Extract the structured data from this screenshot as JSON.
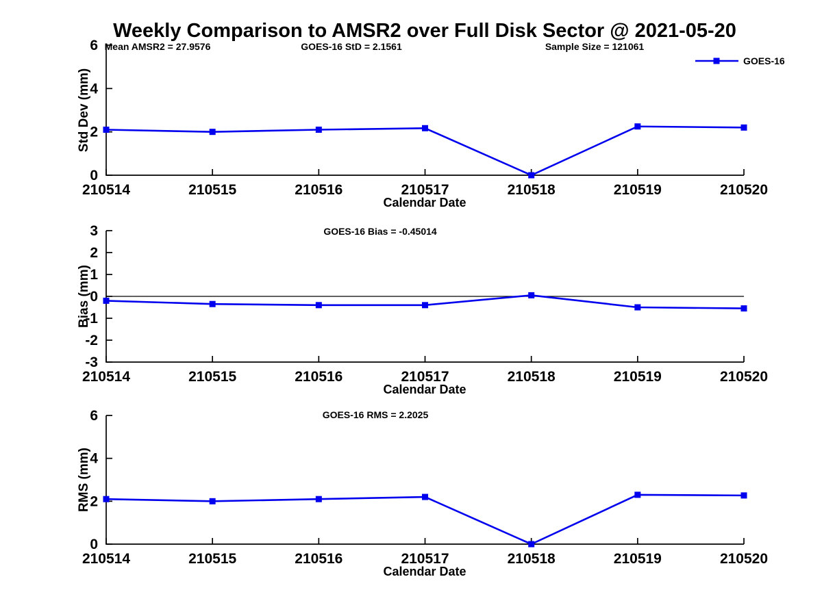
{
  "title": "Weekly Comparison to AMSR2 over Full Disk Sector @ 2021-05-20",
  "colors": {
    "series_line": "#0000ee",
    "axis": "#000000",
    "zero_line": "#000000",
    "background": "#ffffff"
  },
  "legend": {
    "label": "GOES-16"
  },
  "annotations": {
    "mean_amsr2": "Mean AMSR2 = 27.9576",
    "goes_std": "GOES-16 StD = 2.1561",
    "sample_size": "Sample Size = 121061",
    "goes_bias": "GOES-16 Bias  = -0.45014",
    "goes_rms": "GOES-16 RMS = 2.2025"
  },
  "chart_data": [
    {
      "type": "line",
      "name": "std-dev",
      "title": "",
      "categories": [
        "210514",
        "210515",
        "210516",
        "210517",
        "210518",
        "210519",
        "210520"
      ],
      "series": [
        {
          "name": "GOES-16",
          "values": [
            2.1,
            2.0,
            2.1,
            2.17,
            0.0,
            2.25,
            2.2
          ]
        }
      ],
      "xlabel": "Calendar Date",
      "ylabel": "Std Dev (mm)",
      "ylim": [
        0,
        6
      ],
      "yticks": [
        0,
        2,
        4,
        6
      ],
      "grid": false,
      "zero_line": false,
      "legend_position": "top-right-outside"
    },
    {
      "type": "line",
      "name": "bias",
      "title": "",
      "categories": [
        "210514",
        "210515",
        "210516",
        "210517",
        "210518",
        "210519",
        "210520"
      ],
      "series": [
        {
          "name": "GOES-16",
          "values": [
            -0.2,
            -0.35,
            -0.4,
            -0.4,
            0.05,
            -0.5,
            -0.55
          ]
        }
      ],
      "xlabel": "Calendar Date",
      "ylabel": "Bias (mm)",
      "ylim": [
        -3,
        3
      ],
      "yticks": [
        3,
        2,
        1,
        0,
        -1,
        -2,
        -3
      ],
      "grid": false,
      "zero_line": true,
      "legend_position": "none"
    },
    {
      "type": "line",
      "name": "rms",
      "title": "",
      "categories": [
        "210514",
        "210515",
        "210516",
        "210517",
        "210518",
        "210519",
        "210520"
      ],
      "series": [
        {
          "name": "GOES-16",
          "values": [
            2.1,
            2.0,
            2.1,
            2.2,
            0.0,
            2.3,
            2.27
          ]
        }
      ],
      "xlabel": "Calendar Date",
      "ylabel": "RMS (mm)",
      "ylim": [
        0,
        6
      ],
      "yticks": [
        0,
        2,
        4,
        6
      ],
      "grid": false,
      "zero_line": false,
      "legend_position": "none"
    }
  ]
}
